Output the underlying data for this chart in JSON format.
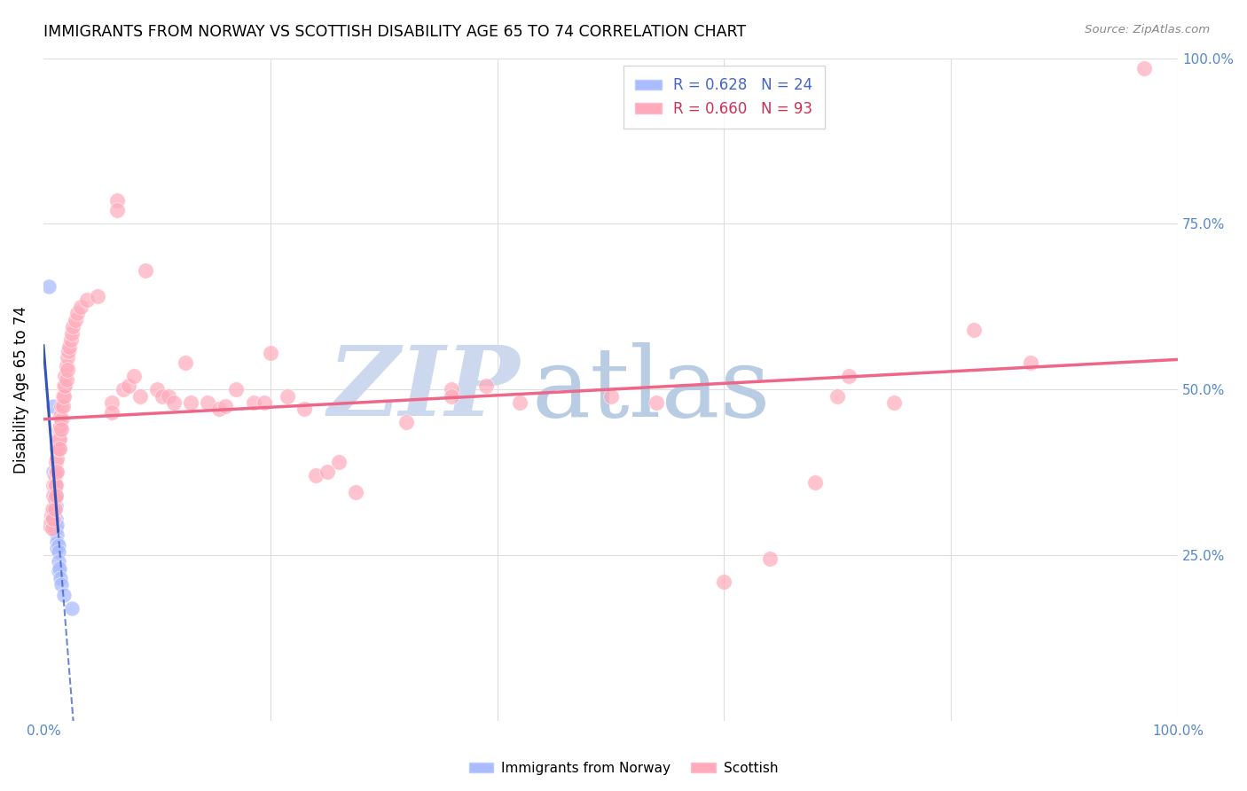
{
  "title": "IMMIGRANTS FROM NORWAY VS SCOTTISH DISABILITY AGE 65 TO 74 CORRELATION CHART",
  "source": "Source: ZipAtlas.com",
  "ylabel": "Disability Age 65 to 74",
  "xlim": [
    0.0,
    1.0
  ],
  "ylim": [
    0.0,
    1.0
  ],
  "norway_color": "#aabbff",
  "norway_edge_color": "#aabbff",
  "norway_line_color": "#3355bb",
  "scottish_color": "#ffaabb",
  "scottish_edge_color": "#ffaabb",
  "scottish_line_color": "#ee6688",
  "background_color": "#ffffff",
  "grid_color": "#dddddd",
  "watermark_zip": "ZIP",
  "watermark_atlas": "atlas",
  "watermark_color": "#ccd8ee",
  "norway_points": [
    [
      0.005,
      0.655
    ],
    [
      0.009,
      0.475
    ],
    [
      0.009,
      0.375
    ],
    [
      0.01,
      0.355
    ],
    [
      0.01,
      0.35
    ],
    [
      0.01,
      0.335
    ],
    [
      0.01,
      0.32
    ],
    [
      0.011,
      0.34
    ],
    [
      0.011,
      0.325
    ],
    [
      0.011,
      0.305
    ],
    [
      0.011,
      0.29
    ],
    [
      0.012,
      0.295
    ],
    [
      0.012,
      0.28
    ],
    [
      0.012,
      0.27
    ],
    [
      0.012,
      0.26
    ],
    [
      0.013,
      0.265
    ],
    [
      0.013,
      0.255
    ],
    [
      0.013,
      0.24
    ],
    [
      0.013,
      0.225
    ],
    [
      0.014,
      0.23
    ],
    [
      0.015,
      0.215
    ],
    [
      0.016,
      0.205
    ],
    [
      0.018,
      0.19
    ],
    [
      0.025,
      0.17
    ]
  ],
  "scottish_points": [
    [
      0.005,
      0.295
    ],
    [
      0.007,
      0.31
    ],
    [
      0.007,
      0.3
    ],
    [
      0.008,
      0.32
    ],
    [
      0.008,
      0.305
    ],
    [
      0.008,
      0.29
    ],
    [
      0.009,
      0.355
    ],
    [
      0.009,
      0.34
    ],
    [
      0.009,
      0.32
    ],
    [
      0.009,
      0.305
    ],
    [
      0.01,
      0.37
    ],
    [
      0.01,
      0.355
    ],
    [
      0.01,
      0.335
    ],
    [
      0.01,
      0.32
    ],
    [
      0.011,
      0.39
    ],
    [
      0.011,
      0.375
    ],
    [
      0.011,
      0.355
    ],
    [
      0.011,
      0.34
    ],
    [
      0.012,
      0.41
    ],
    [
      0.012,
      0.395
    ],
    [
      0.012,
      0.375
    ],
    [
      0.013,
      0.425
    ],
    [
      0.013,
      0.41
    ],
    [
      0.014,
      0.44
    ],
    [
      0.014,
      0.425
    ],
    [
      0.014,
      0.41
    ],
    [
      0.015,
      0.46
    ],
    [
      0.015,
      0.445
    ],
    [
      0.016,
      0.475
    ],
    [
      0.016,
      0.455
    ],
    [
      0.016,
      0.44
    ],
    [
      0.017,
      0.49
    ],
    [
      0.017,
      0.475
    ],
    [
      0.018,
      0.505
    ],
    [
      0.018,
      0.49
    ],
    [
      0.019,
      0.52
    ],
    [
      0.019,
      0.505
    ],
    [
      0.02,
      0.535
    ],
    [
      0.02,
      0.515
    ],
    [
      0.021,
      0.548
    ],
    [
      0.021,
      0.53
    ],
    [
      0.022,
      0.558
    ],
    [
      0.023,
      0.565
    ],
    [
      0.024,
      0.575
    ],
    [
      0.025,
      0.585
    ],
    [
      0.026,
      0.595
    ],
    [
      0.028,
      0.605
    ],
    [
      0.03,
      0.615
    ],
    [
      0.033,
      0.625
    ],
    [
      0.038,
      0.635
    ],
    [
      0.048,
      0.64
    ],
    [
      0.06,
      0.48
    ],
    [
      0.06,
      0.465
    ],
    [
      0.065,
      0.785
    ],
    [
      0.065,
      0.77
    ],
    [
      0.07,
      0.5
    ],
    [
      0.075,
      0.505
    ],
    [
      0.08,
      0.52
    ],
    [
      0.085,
      0.49
    ],
    [
      0.09,
      0.68
    ],
    [
      0.1,
      0.5
    ],
    [
      0.105,
      0.49
    ],
    [
      0.11,
      0.49
    ],
    [
      0.115,
      0.48
    ],
    [
      0.125,
      0.54
    ],
    [
      0.13,
      0.48
    ],
    [
      0.145,
      0.48
    ],
    [
      0.155,
      0.47
    ],
    [
      0.16,
      0.475
    ],
    [
      0.17,
      0.5
    ],
    [
      0.185,
      0.48
    ],
    [
      0.195,
      0.48
    ],
    [
      0.2,
      0.555
    ],
    [
      0.215,
      0.49
    ],
    [
      0.23,
      0.47
    ],
    [
      0.24,
      0.37
    ],
    [
      0.25,
      0.375
    ],
    [
      0.26,
      0.39
    ],
    [
      0.275,
      0.345
    ],
    [
      0.32,
      0.45
    ],
    [
      0.36,
      0.5
    ],
    [
      0.36,
      0.49
    ],
    [
      0.39,
      0.505
    ],
    [
      0.42,
      0.48
    ],
    [
      0.5,
      0.49
    ],
    [
      0.54,
      0.48
    ],
    [
      0.6,
      0.21
    ],
    [
      0.64,
      0.245
    ],
    [
      0.68,
      0.36
    ],
    [
      0.7,
      0.49
    ],
    [
      0.71,
      0.52
    ],
    [
      0.75,
      0.48
    ],
    [
      0.82,
      0.59
    ],
    [
      0.87,
      0.54
    ],
    [
      0.97,
      0.985
    ]
  ],
  "norway_line": {
    "x0": 0.005,
    "x1": 0.025,
    "solid_end": 0.018,
    "extended_x1": 0.38
  },
  "scottish_line": {
    "x0": 0.005,
    "x1": 0.97
  }
}
